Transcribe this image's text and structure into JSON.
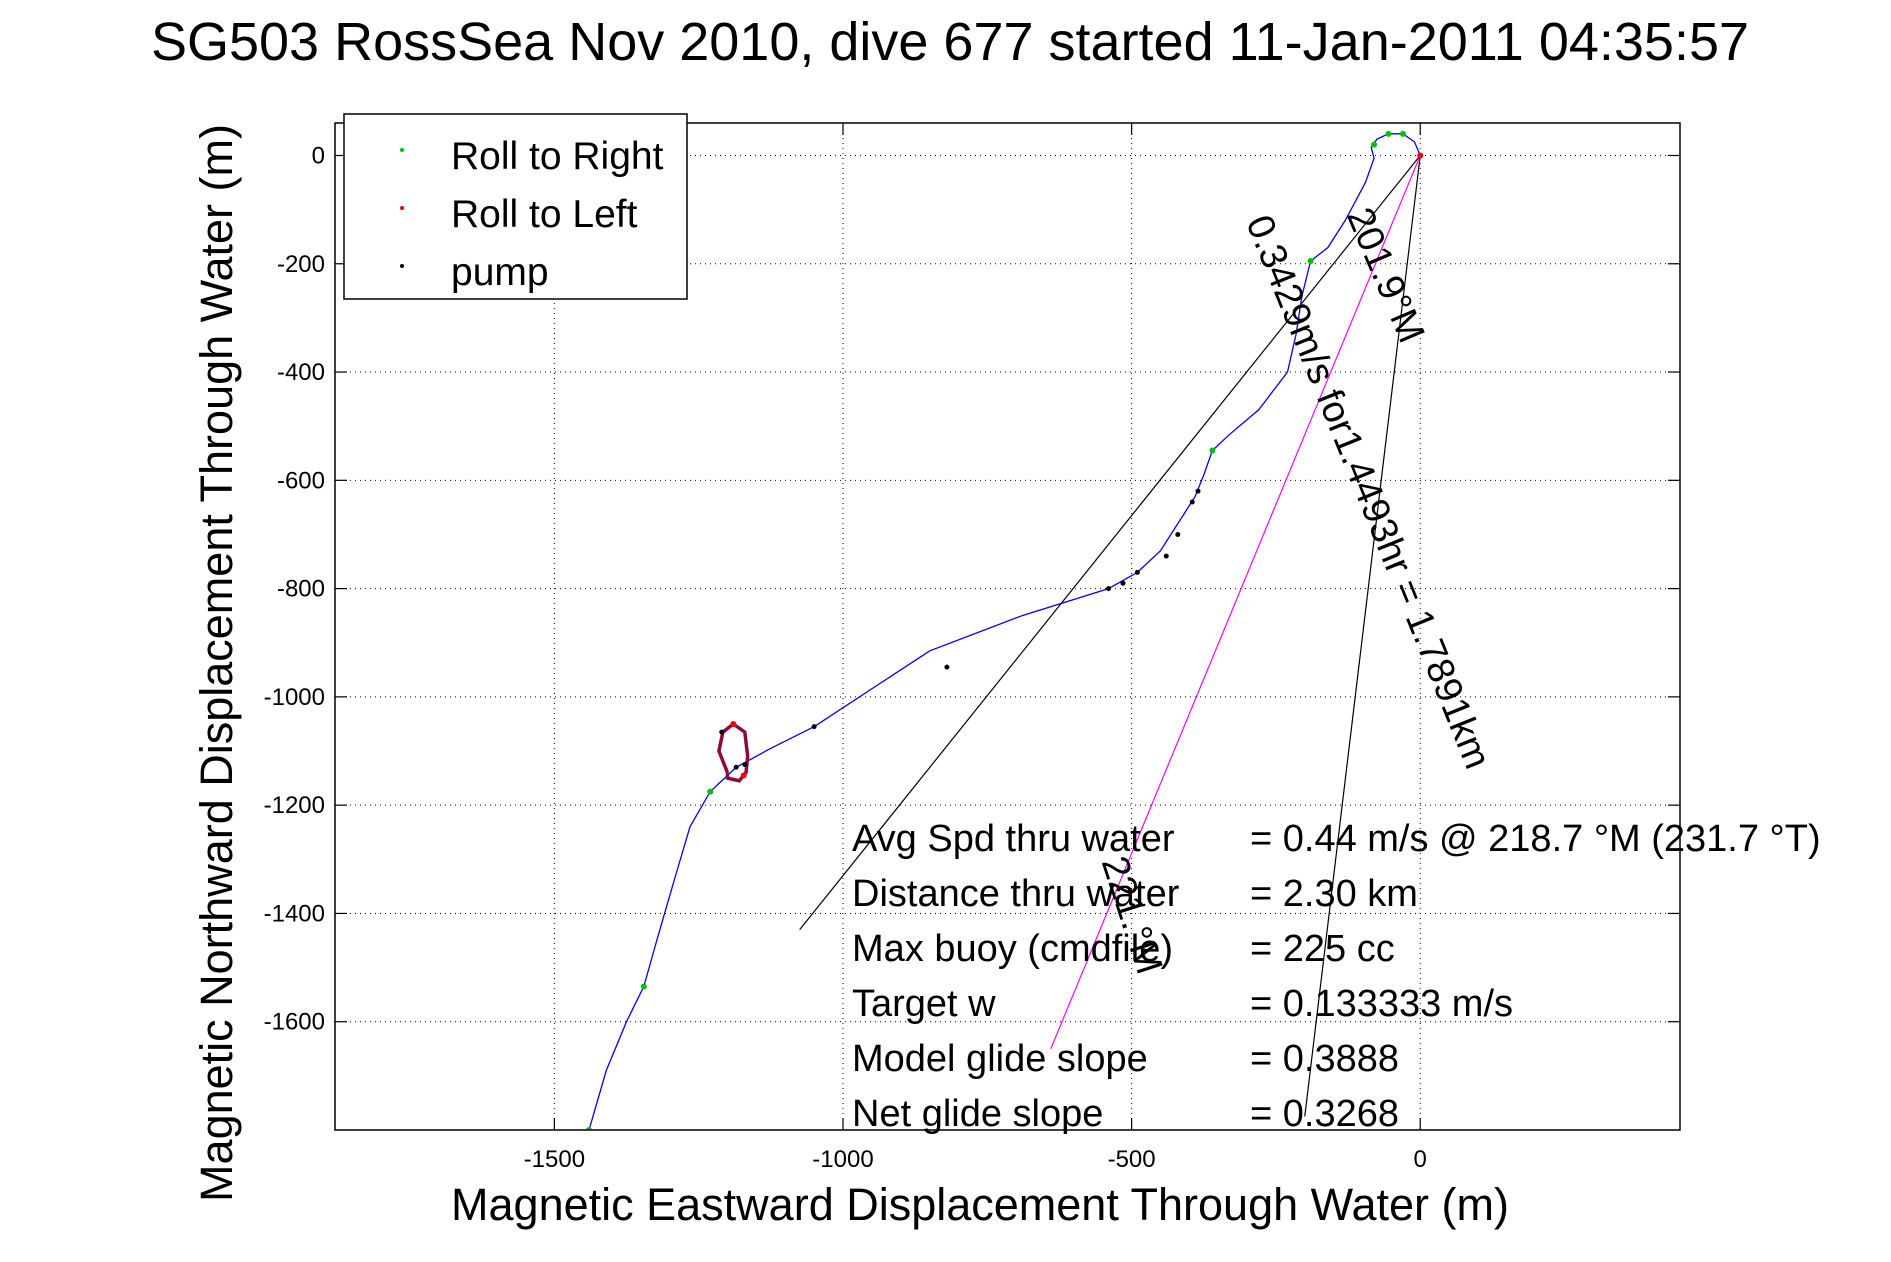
{
  "chart_data": {
    "type": "line",
    "title": "SG503 RossSea Nov 2010, dive 677 started 11-Jan-2011 04:35:57",
    "xlabel": "Magnetic Eastward Displacement Through Water (m)",
    "ylabel": "Magnetic Northward Displacement Through Water (m)",
    "xlim": [
      -1880,
      450
    ],
    "ylim": [
      -1800,
      60
    ],
    "x_ticks": [
      -1500,
      -1000,
      -500,
      0
    ],
    "y_ticks": [
      0,
      -200,
      -400,
      -600,
      -800,
      -1000,
      -1200,
      -1400,
      -1600
    ],
    "grid": true,
    "legend_position": "top-left",
    "legend": [
      {
        "label": "Roll to Right",
        "color": "#00c000"
      },
      {
        "label": "Roll to Left",
        "color": "#ff0000"
      },
      {
        "label": "pump",
        "color": "#000000"
      }
    ],
    "track": {
      "name": "glider track",
      "color": "#0000ff",
      "points": [
        [
          0,
          0
        ],
        [
          -10,
          25
        ],
        [
          -30,
          40
        ],
        [
          -55,
          40
        ],
        [
          -75,
          30
        ],
        [
          -85,
          15
        ],
        [
          -80,
          -5
        ],
        [
          -95,
          -50
        ],
        [
          -130,
          -120
        ],
        [
          -160,
          -170
        ],
        [
          -190,
          -195
        ],
        [
          -205,
          -260
        ],
        [
          -215,
          -330
        ],
        [
          -230,
          -400
        ],
        [
          -280,
          -470
        ],
        [
          -330,
          -515
        ],
        [
          -360,
          -545
        ],
        [
          -375,
          -590
        ],
        [
          -390,
          -630
        ],
        [
          -420,
          -680
        ],
        [
          -450,
          -730
        ],
        [
          -490,
          -770
        ],
        [
          -540,
          -800
        ],
        [
          -690,
          -850
        ],
        [
          -850,
          -915
        ],
        [
          -1050,
          -1055
        ],
        [
          -1125,
          -1095
        ],
        [
          -1185,
          -1130
        ],
        [
          -1200,
          -1145
        ],
        [
          -1230,
          -1175
        ],
        [
          -1265,
          -1240
        ],
        [
          -1290,
          -1330
        ],
        [
          -1320,
          -1440
        ],
        [
          -1345,
          -1535
        ],
        [
          -1375,
          -1600
        ],
        [
          -1410,
          -1690
        ],
        [
          -1440,
          -1800
        ]
      ]
    },
    "loop": {
      "color": "#8b0a3c",
      "points": [
        [
          -1200,
          -1140
        ],
        [
          -1215,
          -1100
        ],
        [
          -1208,
          -1065
        ],
        [
          -1190,
          -1050
        ],
        [
          -1170,
          -1065
        ],
        [
          -1165,
          -1110
        ],
        [
          -1168,
          -1140
        ],
        [
          -1180,
          -1155
        ],
        [
          -1200,
          -1150
        ],
        [
          -1200,
          -1140
        ]
      ]
    },
    "roll_right": [
      [
        -30,
        40
      ],
      [
        -55,
        40
      ],
      [
        -80,
        20
      ],
      [
        -190,
        -195
      ],
      [
        -360,
        -545
      ],
      [
        -1230,
        -1175
      ],
      [
        -1345,
        -1535
      ],
      [
        -1440,
        -1800
      ]
    ],
    "roll_left": [
      [
        -1190,
        -1050
      ],
      [
        -1172,
        -1145
      ],
      [
        0,
        0
      ]
    ],
    "pump": [
      [
        -1050,
        -1055
      ],
      [
        -820,
        -945
      ],
      [
        -540,
        -800
      ],
      [
        -515,
        -790
      ],
      [
        -490,
        -770
      ],
      [
        -440,
        -740
      ],
      [
        -420,
        -700
      ],
      [
        -395,
        -640
      ],
      [
        -385,
        -620
      ],
      [
        -1210,
        -1065
      ],
      [
        -1185,
        -1130
      ],
      [
        -1170,
        -1125
      ]
    ],
    "reference_lines": [
      {
        "from": [
          0,
          0
        ],
        "to": [
          -1075,
          -1430
        ],
        "color": "#000000"
      },
      {
        "from": [
          0,
          0
        ],
        "to": [
          -640,
          -1650
        ],
        "color": "#ff00ff"
      },
      {
        "from": [
          0,
          0
        ],
        "to": [
          -200,
          -1775
        ],
        "color": "#000000"
      }
    ],
    "line_labels": [
      {
        "text": "201.9°M",
        "x": -80,
        "y": -230,
        "angle": 67
      },
      {
        "text": "0.3429m/s for1.4493hr = 1.7891km",
        "x": -110,
        "y": -630,
        "angle": 68
      },
      {
        "text": "221.°M",
        "x": -520,
        "y": -1410,
        "angle": 72
      }
    ],
    "annotations": [
      {
        "label": "Avg Spd thru water",
        "value": "=  0.44 m/s @ 218.7  °M (231.7 °T)"
      },
      {
        "label": "Distance thru water",
        "value": "=  2.30 km"
      },
      {
        "label": "Max buoy (cmdfile)",
        "value": "= 225 cc"
      },
      {
        "label": "Target w",
        "value": "= 0.133333 m/s"
      },
      {
        "label": "Model glide slope",
        "value": "= 0.3888"
      },
      {
        "label": "Net glide slope",
        "value": "= 0.3268"
      }
    ]
  }
}
